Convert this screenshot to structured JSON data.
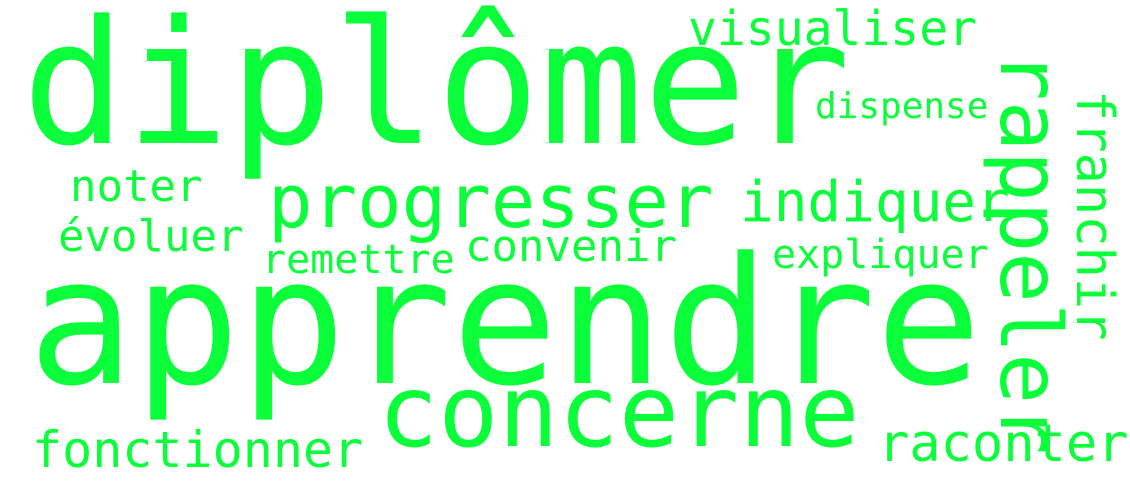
{
  "colors": {
    "text": "#0afe3a",
    "background": "#ffffff"
  },
  "words": [
    {
      "text": "diplômer"
    },
    {
      "text": "apprendre"
    },
    {
      "text": "concerne"
    },
    {
      "text": "progresser"
    },
    {
      "text": "rappeler"
    },
    {
      "text": "indiquer"
    },
    {
      "text": "visualiser"
    },
    {
      "text": "dispense"
    },
    {
      "text": "franchir"
    },
    {
      "text": "noter"
    },
    {
      "text": "évoluer"
    },
    {
      "text": "convenir"
    },
    {
      "text": "remettre"
    },
    {
      "text": "expliquer"
    },
    {
      "text": "fonctionner"
    },
    {
      "text": "raconter"
    }
  ]
}
